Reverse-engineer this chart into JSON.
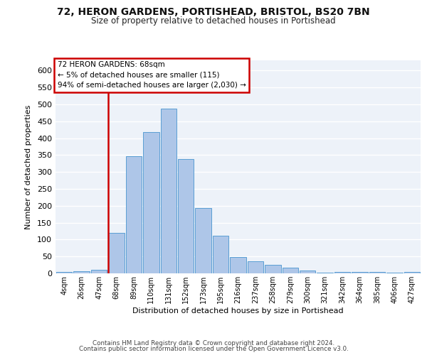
{
  "title1": "72, HERON GARDENS, PORTISHEAD, BRISTOL, BS20 7BN",
  "title2": "Size of property relative to detached houses in Portishead",
  "xlabel": "Distribution of detached houses by size in Portishead",
  "ylabel": "Number of detached properties",
  "categories": [
    "4sqm",
    "26sqm",
    "47sqm",
    "68sqm",
    "89sqm",
    "110sqm",
    "131sqm",
    "152sqm",
    "173sqm",
    "195sqm",
    "216sqm",
    "237sqm",
    "258sqm",
    "279sqm",
    "300sqm",
    "321sqm",
    "342sqm",
    "364sqm",
    "385sqm",
    "406sqm",
    "427sqm"
  ],
  "values": [
    5,
    6,
    10,
    120,
    347,
    418,
    487,
    338,
    193,
    112,
    49,
    35,
    26,
    17,
    9,
    3,
    5,
    4,
    4,
    3,
    5
  ],
  "bar_color": "#aec6e8",
  "bar_edge_color": "#5a9fd4",
  "vline_index": 3,
  "vline_color": "#cc0000",
  "annotation_line1": "72 HERON GARDENS: 68sqm",
  "annotation_line2": "← 5% of detached houses are smaller (115)",
  "annotation_line3": "94% of semi-detached houses are larger (2,030) →",
  "annotation_box_color": "#cc0000",
  "ylim_max": 630,
  "yticks": [
    0,
    50,
    100,
    150,
    200,
    250,
    300,
    350,
    400,
    450,
    500,
    550,
    600
  ],
  "background_color": "#edf2f9",
  "grid_color": "#ffffff",
  "footer_line1": "Contains HM Land Registry data © Crown copyright and database right 2024.",
  "footer_line2": "Contains public sector information licensed under the Open Government Licence v3.0."
}
